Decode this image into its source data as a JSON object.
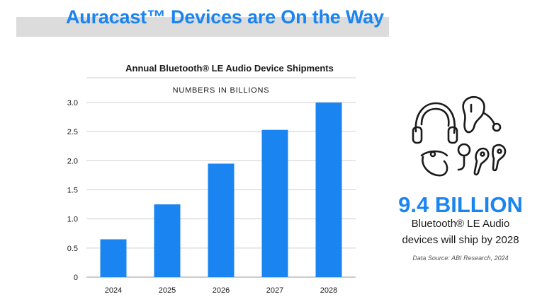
{
  "page": {
    "title": "Auracast™ Devices are On the Way"
  },
  "chart_data": {
    "type": "bar",
    "title": "Annual Bluetooth® LE Audio Device Shipments",
    "subtitle": "NUMBERS IN BILLIONS",
    "categories": [
      "2024",
      "2025",
      "2026",
      "2027",
      "2028"
    ],
    "values": [
      0.65,
      1.25,
      1.95,
      2.53,
      3.0
    ],
    "yticks": [
      "0",
      "0.5",
      "1.0",
      "1.5",
      "2.0",
      "2.5",
      "3.0"
    ],
    "ylim": [
      0,
      3.0
    ],
    "xlabel": "",
    "ylabel": "",
    "grid": true,
    "bar_color": "#1a84f0"
  },
  "stat": {
    "headline": "9.4 BILLION",
    "line1": "Bluetooth® LE Audio",
    "line2": "devices will ship by 2028",
    "source": "Data Source: ABI Research, 2024"
  },
  "graphic": {
    "icons": [
      "headphones-icon",
      "hearing-aid-icon",
      "earbud-icon",
      "microphone-icon",
      "earbuds-pair-icon"
    ]
  },
  "colors": {
    "accent": "#1a84f0",
    "title_band": "#dcdcdc",
    "grid": "#cfcfcf"
  }
}
